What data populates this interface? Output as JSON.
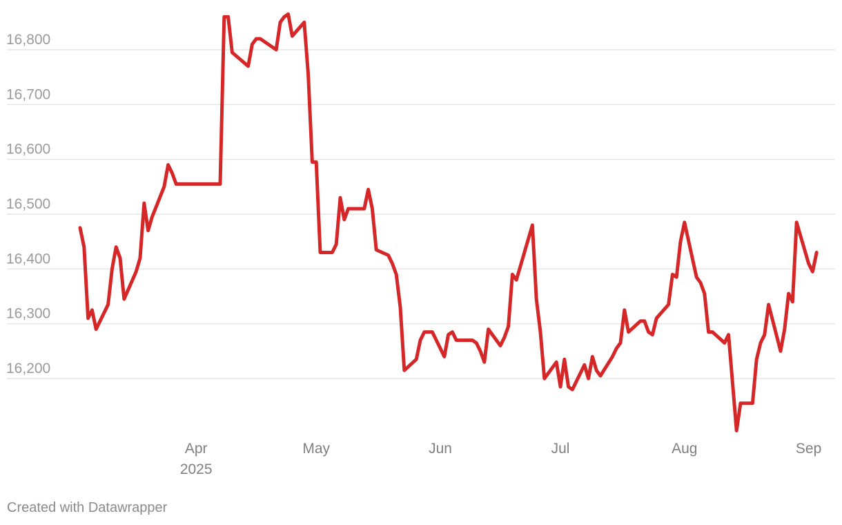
{
  "chart_data": {
    "type": "line",
    "title": "",
    "xlabel": "",
    "ylabel": "",
    "ylim": [
      16100,
      16900
    ],
    "xlim": [
      "2025-03-03",
      "2025-09-04"
    ],
    "y_ticks": [
      {
        "value": 16200,
        "label": "16,200"
      },
      {
        "value": 16300,
        "label": "16,300"
      },
      {
        "value": 16400,
        "label": "16,400"
      },
      {
        "value": 16500,
        "label": "16,500"
      },
      {
        "value": 16600,
        "label": "16,600"
      },
      {
        "value": 16700,
        "label": "16,700"
      },
      {
        "value": 16800,
        "label": "16,800"
      }
    ],
    "x_ticks": [
      {
        "date": "2025-04-01",
        "label": "Apr",
        "sublabel": "2025"
      },
      {
        "date": "2025-05-01",
        "label": "May",
        "sublabel": ""
      },
      {
        "date": "2025-06-01",
        "label": "Jun",
        "sublabel": ""
      },
      {
        "date": "2025-07-01",
        "label": "Jul",
        "sublabel": ""
      },
      {
        "date": "2025-08-01",
        "label": "Aug",
        "sublabel": ""
      },
      {
        "date": "2025-09-01",
        "label": "Sep",
        "sublabel": ""
      }
    ],
    "grid": true,
    "legend": "none",
    "line_color": "#d62728",
    "series": [
      {
        "points": [
          [
            "2025-03-03",
            16475
          ],
          [
            "2025-03-04",
            16440
          ],
          [
            "2025-03-05",
            16310
          ],
          [
            "2025-03-06",
            16325
          ],
          [
            "2025-03-07",
            16290
          ],
          [
            "2025-03-10",
            16335
          ],
          [
            "2025-03-11",
            16400
          ],
          [
            "2025-03-12",
            16440
          ],
          [
            "2025-03-13",
            16420
          ],
          [
            "2025-03-14",
            16345
          ],
          [
            "2025-03-17",
            16395
          ],
          [
            "2025-03-18",
            16420
          ],
          [
            "2025-03-19",
            16520
          ],
          [
            "2025-03-20",
            16470
          ],
          [
            "2025-03-21",
            16495
          ],
          [
            "2025-03-24",
            16550
          ],
          [
            "2025-03-25",
            16590
          ],
          [
            "2025-03-26",
            16575
          ],
          [
            "2025-03-27",
            16555
          ],
          [
            "2025-04-07",
            16555
          ],
          [
            "2025-04-08",
            16860
          ],
          [
            "2025-04-09",
            16860
          ],
          [
            "2025-04-10",
            16795
          ],
          [
            "2025-04-14",
            16770
          ],
          [
            "2025-04-15",
            16810
          ],
          [
            "2025-04-16",
            16820
          ],
          [
            "2025-04-17",
            16820
          ],
          [
            "2025-04-21",
            16800
          ],
          [
            "2025-04-22",
            16850
          ],
          [
            "2025-04-23",
            16860
          ],
          [
            "2025-04-24",
            16865
          ],
          [
            "2025-04-25",
            16825
          ],
          [
            "2025-04-28",
            16850
          ],
          [
            "2025-04-29",
            16755
          ],
          [
            "2025-04-30",
            16595
          ],
          [
            "2025-05-01",
            16595
          ],
          [
            "2025-05-02",
            16430
          ],
          [
            "2025-05-05",
            16430
          ],
          [
            "2025-05-06",
            16445
          ],
          [
            "2025-05-07",
            16530
          ],
          [
            "2025-05-08",
            16490
          ],
          [
            "2025-05-09",
            16510
          ],
          [
            "2025-05-13",
            16510
          ],
          [
            "2025-05-14",
            16545
          ],
          [
            "2025-05-15",
            16510
          ],
          [
            "2025-05-16",
            16435
          ],
          [
            "2025-05-19",
            16425
          ],
          [
            "2025-05-20",
            16410
          ],
          [
            "2025-05-21",
            16390
          ],
          [
            "2025-05-22",
            16330
          ],
          [
            "2025-05-23",
            16215
          ],
          [
            "2025-05-26",
            16235
          ],
          [
            "2025-05-27",
            16270
          ],
          [
            "2025-05-28",
            16285
          ],
          [
            "2025-05-30",
            16285
          ],
          [
            "2025-06-02",
            16240
          ],
          [
            "2025-06-03",
            16280
          ],
          [
            "2025-06-04",
            16285
          ],
          [
            "2025-06-05",
            16270
          ],
          [
            "2025-06-09",
            16270
          ],
          [
            "2025-06-10",
            16265
          ],
          [
            "2025-06-11",
            16250
          ],
          [
            "2025-06-12",
            16230
          ],
          [
            "2025-06-13",
            16290
          ],
          [
            "2025-06-16",
            16260
          ],
          [
            "2025-06-17",
            16275
          ],
          [
            "2025-06-18",
            16295
          ],
          [
            "2025-06-19",
            16390
          ],
          [
            "2025-06-20",
            16380
          ],
          [
            "2025-06-24",
            16480
          ],
          [
            "2025-06-25",
            16345
          ],
          [
            "2025-06-26",
            16285
          ],
          [
            "2025-06-27",
            16200
          ],
          [
            "2025-06-30",
            16230
          ],
          [
            "2025-07-01",
            16185
          ],
          [
            "2025-07-02",
            16235
          ],
          [
            "2025-07-03",
            16185
          ],
          [
            "2025-07-04",
            16180
          ],
          [
            "2025-07-07",
            16225
          ],
          [
            "2025-07-08",
            16200
          ],
          [
            "2025-07-09",
            16240
          ],
          [
            "2025-07-10",
            16215
          ],
          [
            "2025-07-11",
            16205
          ],
          [
            "2025-07-14",
            16240
          ],
          [
            "2025-07-15",
            16255
          ],
          [
            "2025-07-16",
            16265
          ],
          [
            "2025-07-17",
            16325
          ],
          [
            "2025-07-18",
            16285
          ],
          [
            "2025-07-21",
            16305
          ],
          [
            "2025-07-22",
            16305
          ],
          [
            "2025-07-23",
            16285
          ],
          [
            "2025-07-24",
            16280
          ],
          [
            "2025-07-25",
            16310
          ],
          [
            "2025-07-28",
            16335
          ],
          [
            "2025-07-29",
            16390
          ],
          [
            "2025-07-30",
            16385
          ],
          [
            "2025-07-31",
            16450
          ],
          [
            "2025-08-01",
            16485
          ],
          [
            "2025-08-04",
            16385
          ],
          [
            "2025-08-05",
            16375
          ],
          [
            "2025-08-06",
            16355
          ],
          [
            "2025-08-07",
            16285
          ],
          [
            "2025-08-08",
            16285
          ],
          [
            "2025-08-11",
            16265
          ],
          [
            "2025-08-12",
            16280
          ],
          [
            "2025-08-14",
            16105
          ],
          [
            "2025-08-15",
            16155
          ],
          [
            "2025-08-18",
            16155
          ],
          [
            "2025-08-19",
            16235
          ],
          [
            "2025-08-20",
            16265
          ],
          [
            "2025-08-21",
            16280
          ],
          [
            "2025-08-22",
            16335
          ],
          [
            "2025-08-25",
            16250
          ],
          [
            "2025-08-26",
            16290
          ],
          [
            "2025-08-27",
            16355
          ],
          [
            "2025-08-28",
            16340
          ],
          [
            "2025-08-29",
            16485
          ],
          [
            "2025-09-01",
            16410
          ],
          [
            "2025-09-02",
            16395
          ],
          [
            "2025-09-03",
            16430
          ]
        ]
      }
    ]
  },
  "footer": {
    "credit": "Created with Datawrapper"
  }
}
